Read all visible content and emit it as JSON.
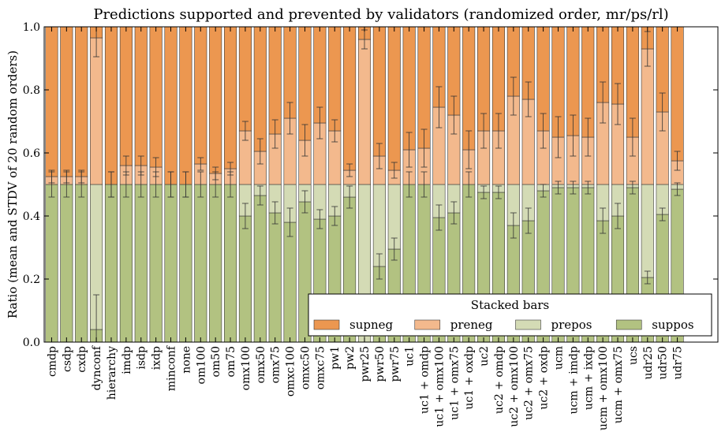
{
  "chart_data": {
    "type": "bar",
    "stacked": true,
    "title": "Predictions supported and prevented by validators (randomized order, mr/ps/rl)",
    "xlabel": "",
    "ylabel": "Ratio (mean and STDV of 20 random orders)",
    "ylim": [
      0,
      1
    ],
    "yticks": [
      "0.0",
      "0.2",
      "0.4",
      "0.6",
      "0.8",
      "1.0"
    ],
    "grid": false,
    "legend": {
      "title": "Stacked bars",
      "placement": "bottom-right",
      "ncol": 4
    },
    "categories": [
      "cmdp",
      "csdp",
      "cxdp",
      "dynconf",
      "hierarchy",
      "imdp",
      "isdp",
      "ixdp",
      "minconf",
      "none",
      "om100",
      "om50",
      "om75",
      "omx100",
      "omx50",
      "omx75",
      "omxc100",
      "omxc50",
      "omxc75",
      "pw1",
      "pw2",
      "pwr25",
      "pwr50",
      "pwr75",
      "uc1",
      "uc1 + omdp",
      "uc1 + omx100",
      "uc1 + omx75",
      "uc1 + oxdp",
      "uc2",
      "uc2 + omdp",
      "uc2 + omx100",
      "uc2 + omx75",
      "uc2 + oxdp",
      "ucm",
      "ucm + imdp",
      "ucm + ixdp",
      "ucm + omx100",
      "ucm + omx75",
      "ucs",
      "udr25",
      "udr50",
      "udr75"
    ],
    "series": [
      {
        "name": "suppos",
        "color": "#b2c281",
        "values": [
          0.5,
          0.5,
          0.5,
          0.04,
          0.5,
          0.5,
          0.5,
          0.5,
          0.5,
          0.5,
          0.5,
          0.5,
          0.5,
          0.4,
          0.465,
          0.41,
          0.38,
          0.445,
          0.39,
          0.4,
          0.46,
          0.0,
          0.24,
          0.295,
          0.5,
          0.5,
          0.395,
          0.41,
          0.5,
          0.475,
          0.475,
          0.37,
          0.385,
          0.48,
          0.49,
          0.49,
          0.49,
          0.385,
          0.4,
          0.49,
          0.205,
          0.405,
          0.485
        ],
        "errors": [
          0.04,
          0.04,
          0.04,
          0.11,
          0.04,
          0.04,
          0.04,
          0.04,
          0.04,
          0.04,
          0.04,
          0.04,
          0.04,
          0.04,
          0.03,
          0.035,
          0.045,
          0.035,
          0.03,
          0.03,
          0.035,
          0.02,
          0.04,
          0.035,
          0.04,
          0.04,
          0.04,
          0.035,
          0.04,
          0.02,
          0.02,
          0.04,
          0.04,
          0.02,
          0.02,
          0.02,
          0.02,
          0.04,
          0.04,
          0.02,
          0.02,
          0.02,
          0.02
        ]
      },
      {
        "name": "prepos",
        "color": "#d4dbb5",
        "values": [
          0.0,
          0.0,
          0.0,
          0.46,
          0.0,
          0.0,
          0.0,
          0.0,
          0.0,
          0.0,
          0.0,
          0.0,
          0.0,
          0.1,
          0.035,
          0.09,
          0.12,
          0.055,
          0.11,
          0.1,
          0.04,
          0.5,
          0.26,
          0.205,
          0.0,
          0.0,
          0.105,
          0.09,
          0.0,
          0.025,
          0.025,
          0.13,
          0.115,
          0.02,
          0.01,
          0.01,
          0.01,
          0.115,
          0.1,
          0.01,
          0.295,
          0.095,
          0.015
        ],
        "errors": [
          0,
          0,
          0,
          0,
          0,
          0,
          0,
          0,
          0,
          0,
          0,
          0,
          0,
          0,
          0,
          0,
          0,
          0,
          0,
          0,
          0,
          0,
          0,
          0,
          0,
          0,
          0,
          0,
          0,
          0,
          0,
          0,
          0,
          0,
          0,
          0,
          0,
          0,
          0,
          0,
          0,
          0,
          0
        ]
      },
      {
        "name": "preneg",
        "color": "#f3b98d",
        "values": [
          0.025,
          0.025,
          0.025,
          0.465,
          0.0,
          0.06,
          0.06,
          0.055,
          0.0,
          0.0,
          0.065,
          0.035,
          0.05,
          0.17,
          0.105,
          0.16,
          0.21,
          0.14,
          0.195,
          0.17,
          0.045,
          0.46,
          0.09,
          0.045,
          0.11,
          0.115,
          0.245,
          0.22,
          0.11,
          0.17,
          0.17,
          0.28,
          0.27,
          0.17,
          0.15,
          0.155,
          0.15,
          0.26,
          0.255,
          0.15,
          0.43,
          0.23,
          0.075
        ],
        "errors": [
          0.02,
          0.02,
          0.02,
          0.06,
          0.04,
          0.03,
          0.03,
          0.03,
          0.04,
          0.04,
          0.02,
          0.02,
          0.02,
          0.03,
          0.04,
          0.045,
          0.05,
          0.05,
          0.05,
          0.035,
          0.02,
          0.03,
          0.04,
          0.025,
          0.055,
          0.06,
          0.065,
          0.06,
          0.06,
          0.055,
          0.055,
          0.06,
          0.055,
          0.055,
          0.065,
          0.065,
          0.06,
          0.065,
          0.065,
          0.06,
          0.055,
          0.06,
          0.03
        ]
      },
      {
        "name": "supneg",
        "color": "#ec9750",
        "values": [
          0.475,
          0.475,
          0.475,
          0.035,
          0.5,
          0.44,
          0.44,
          0.445,
          0.5,
          0.5,
          0.435,
          0.465,
          0.45,
          0.33,
          0.395,
          0.34,
          0.29,
          0.36,
          0.305,
          0.33,
          0.455,
          0.04,
          0.41,
          0.455,
          0.39,
          0.385,
          0.255,
          0.28,
          0.39,
          0.33,
          0.33,
          0.22,
          0.23,
          0.33,
          0.35,
          0.345,
          0.35,
          0.24,
          0.245,
          0.35,
          0.07,
          0.27,
          0.425
        ],
        "errors": [
          0,
          0,
          0,
          0,
          0,
          0,
          0,
          0,
          0,
          0,
          0,
          0,
          0,
          0,
          0,
          0,
          0,
          0,
          0,
          0,
          0,
          0,
          0,
          0,
          0,
          0,
          0,
          0,
          0,
          0,
          0,
          0,
          0,
          0,
          0,
          0,
          0,
          0,
          0,
          0,
          0,
          0,
          0
        ]
      }
    ]
  }
}
